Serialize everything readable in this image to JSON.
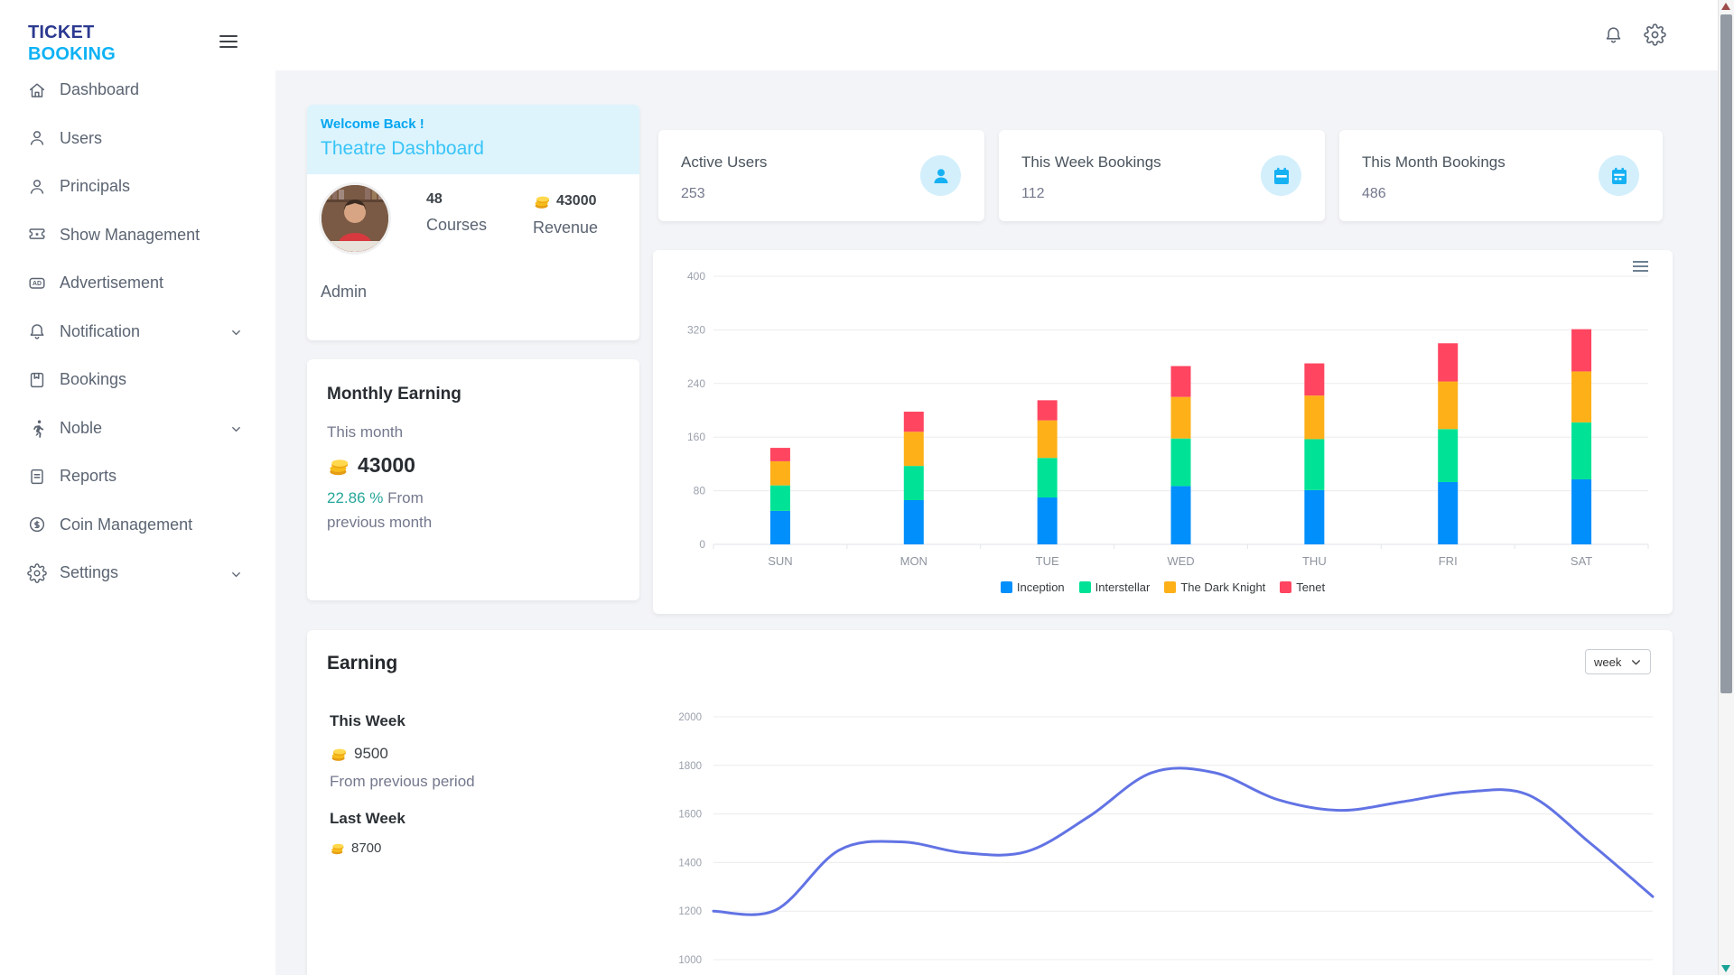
{
  "app": {
    "logo_line1": "TICKET",
    "logo_line2": "BOOKING"
  },
  "sidebar": {
    "items": [
      {
        "label": "Dashboard",
        "icon": "home-icon",
        "expandable": false
      },
      {
        "label": "Users",
        "icon": "user-icon",
        "expandable": false
      },
      {
        "label": "Principals",
        "icon": "user-icon",
        "expandable": false
      },
      {
        "label": "Show Management",
        "icon": "ticket-icon",
        "expandable": false
      },
      {
        "label": "Advertisement",
        "icon": "ad-icon",
        "expandable": false
      },
      {
        "label": "Notification",
        "icon": "bell-icon",
        "expandable": true
      },
      {
        "label": "Bookings",
        "icon": "book-icon",
        "expandable": false
      },
      {
        "label": "Noble",
        "icon": "runner-icon",
        "expandable": true
      },
      {
        "label": "Reports",
        "icon": "report-icon",
        "expandable": false
      },
      {
        "label": "Coin Management",
        "icon": "coin-circle-icon",
        "expandable": false
      },
      {
        "label": "Settings",
        "icon": "gear-icon",
        "expandable": true
      }
    ]
  },
  "welcome": {
    "greeting": "Welcome Back !",
    "title": "Theatre Dashboard",
    "courses_value": "48",
    "courses_label": "Courses",
    "revenue_value": "43000",
    "revenue_label": "Revenue",
    "role": "Admin"
  },
  "monthly_earning": {
    "title": "Monthly Earning",
    "period": "This month",
    "amount": "43000",
    "change_percent": "22.86 %",
    "change_text": " From previous month"
  },
  "stat_cards": [
    {
      "title": "Active Users",
      "value": "253",
      "icon": "user-filled-icon"
    },
    {
      "title": "This Week Bookings",
      "value": "112",
      "icon": "calendar-week-icon"
    },
    {
      "title": "This Month Bookings",
      "value": "486",
      "icon": "calendar-month-icon"
    }
  ],
  "earning": {
    "title": "Earning",
    "this_week_label": "This Week",
    "this_week_value": "9500",
    "period_note": "From previous period",
    "last_week_label": "Last Week",
    "last_week_value": "8700",
    "range_selector_value": "week"
  },
  "chart_data": [
    {
      "type": "bar",
      "stacked": true,
      "categories": [
        "SUN",
        "MON",
        "TUE",
        "WED",
        "THU",
        "FRI",
        "SAT"
      ],
      "series": [
        {
          "name": "Inception",
          "color": "#008FFB",
          "values": [
            50,
            66,
            70,
            87,
            81,
            93,
            97
          ]
        },
        {
          "name": "Interstellar",
          "color": "#00E396",
          "values": [
            38,
            51,
            59,
            71,
            76,
            79,
            85
          ]
        },
        {
          "name": "The Dark Knight",
          "color": "#FEB019",
          "values": [
            36,
            51,
            56,
            62,
            65,
            71,
            76
          ]
        },
        {
          "name": "Tenet",
          "color": "#FF4560",
          "values": [
            20,
            30,
            30,
            46,
            48,
            57,
            63
          ]
        }
      ],
      "ylim": [
        0,
        400
      ],
      "yticks": [
        0,
        80,
        160,
        240,
        320,
        400
      ],
      "legend_position": "bottom",
      "grid": true
    },
    {
      "type": "line",
      "smooth": true,
      "color": "#6273e4",
      "ylim": [
        1000,
        2000
      ],
      "yticks": [
        2000,
        1800,
        1600,
        1400,
        1200,
        1000
      ],
      "values": [
        1200,
        1205,
        1450,
        1485,
        1440,
        1445,
        1590,
        1770,
        1770,
        1660,
        1615,
        1650,
        1690,
        1680,
        1480,
        1260
      ],
      "grid": true,
      "legend_position": "none"
    }
  ],
  "colors": {
    "accent": "#0db2f5",
    "logo_primary": "#2b3990",
    "stat_icon": "#16b1f3",
    "stat_icon_bg": "#d3effc",
    "teal": "#26a69a",
    "coin_gold": "#f6bc1b"
  }
}
